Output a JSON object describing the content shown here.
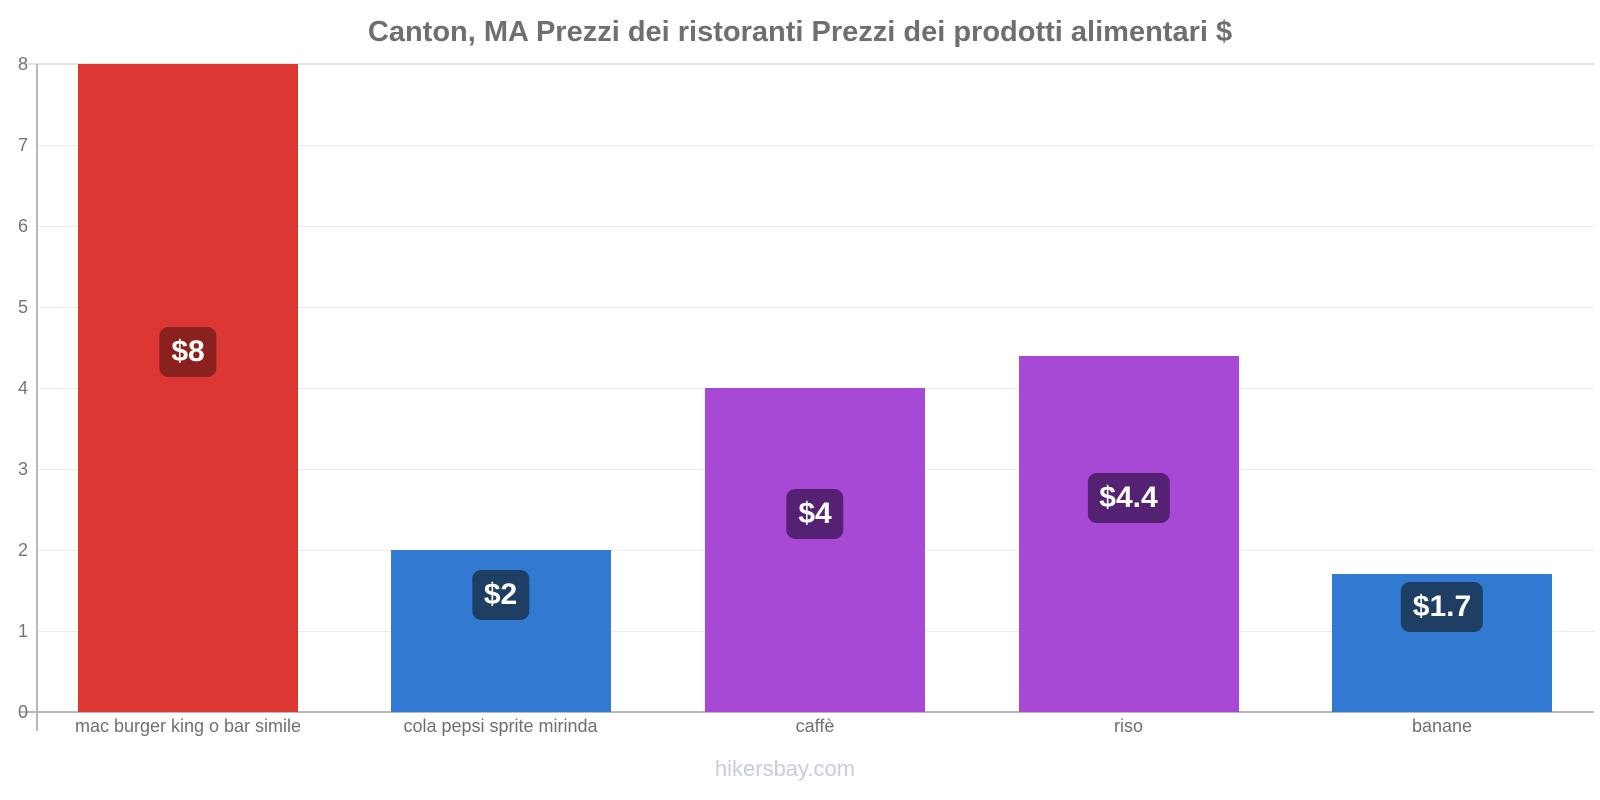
{
  "title": "Canton, MA Prezzi dei ristoranti Prezzi dei prodotti alimentari $",
  "footer": "hikersbay.com",
  "chart_data": {
    "type": "bar",
    "title": "Canton, MA Prezzi dei ristoranti Prezzi dei prodotti alimentari $",
    "categories": [
      "mac burger king o bar simile",
      "cola pepsi sprite mirinda",
      "caffè",
      "riso",
      "banane"
    ],
    "values": [
      8,
      2,
      4,
      4.4,
      1.7
    ],
    "value_labels": [
      "$8",
      "$2",
      "$4",
      "$4.4",
      "$1.7"
    ],
    "bar_colors": [
      "#dc3732",
      "#3279d2",
      "#a849d6",
      "#a849d6",
      "#3279d2"
    ],
    "badge_colors": [
      "#8a211e",
      "#1e3e63",
      "#542173",
      "#542173",
      "#1e3e63"
    ],
    "currency": "$",
    "ylim": [
      0,
      8
    ],
    "yticks": [
      0,
      1,
      2,
      3,
      4,
      5,
      6,
      7,
      8
    ],
    "xlabel": "",
    "ylabel": "",
    "grid": "horizontal",
    "legend": "none"
  },
  "colors": {
    "background": "#ffffff",
    "title_text": "#6f6f6f",
    "axis_line": "#b9b9b9",
    "grid_line": "#ececec",
    "top_grid_line": "#e3e3e3",
    "tick_text": "#757575",
    "category_text": "#6f6f6f",
    "badge_text": "#ffffff",
    "footer_text": "#c9cbdf"
  }
}
